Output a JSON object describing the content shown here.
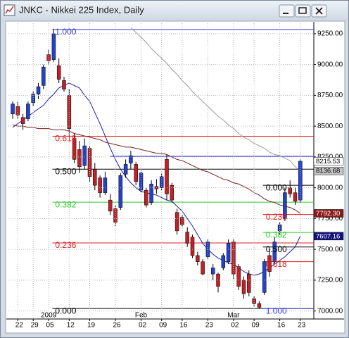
{
  "window": {
    "title": "JNKC - Nikkei 225 Index, Daily"
  },
  "chart_data": {
    "type": "candlestick",
    "categories": [
      null,
      "22",
      null,
      null,
      "29",
      null,
      null,
      "05",
      null,
      null,
      null,
      "12",
      null,
      null,
      null,
      "19",
      null,
      null,
      null,
      null,
      "26",
      null,
      null,
      null,
      null,
      "02",
      null,
      null,
      null,
      "09",
      null,
      null,
      null,
      "16",
      null,
      null,
      null,
      null,
      "23",
      null,
      null,
      null,
      null,
      "02",
      null,
      null,
      null,
      "09",
      null,
      null,
      null,
      null,
      "16",
      null,
      null,
      null,
      "23"
    ],
    "category_groups": [
      null,
      null,
      null,
      null,
      null,
      null,
      null,
      "2009",
      null,
      null,
      null,
      null,
      null,
      null,
      null,
      null,
      null,
      null,
      null,
      null,
      null,
      null,
      null,
      null,
      null,
      "Feb",
      null,
      null,
      null,
      null,
      null,
      null,
      null,
      null,
      null,
      null,
      null,
      null,
      null,
      null,
      null,
      null,
      null,
      "Mar",
      null,
      null,
      null,
      null,
      null,
      null,
      null,
      null,
      null,
      null,
      null,
      null,
      null
    ],
    "open": [
      8600,
      8660,
      8570,
      8560,
      8690,
      8760,
      8830,
      9080,
      9040,
      8990,
      8870,
      8750,
      8400,
      8310,
      8180,
      8320,
      8150,
      8080,
      7960,
      7900,
      7830,
      7840,
      8110,
      8200,
      8190,
      7980,
      7980,
      7880,
      8010,
      8000,
      8230,
      8020,
      7800,
      7760,
      7640,
      7600,
      7450,
      7400,
      7440,
      7300,
      7300,
      7350,
      7400,
      7560,
      7360,
      7250,
      7300,
      7100,
      7060,
      7150,
      7450,
      7400,
      7650,
      7750,
      8000,
      7960,
      7900
    ],
    "high": [
      8700,
      8700,
      8600,
      8700,
      8780,
      8850,
      9000,
      9120,
      9290,
      9050,
      8900,
      8800,
      8440,
      8380,
      8400,
      8340,
      8200,
      8100,
      8130,
      7950,
      7860,
      8120,
      8230,
      8300,
      8210,
      8140,
      8000,
      8060,
      8070,
      8120,
      8270,
      8040,
      7830,
      7780,
      7680,
      7620,
      7480,
      7420,
      7580,
      7380,
      7310,
      7470,
      7580,
      7580,
      7380,
      7280,
      7330,
      7120,
      7080,
      7420,
      7500,
      7600,
      7720,
      8000,
      8060,
      8000,
      8230
    ],
    "low": [
      8560,
      8560,
      8470,
      8540,
      8660,
      8720,
      8800,
      9000,
      9020,
      8850,
      8780,
      8430,
      8200,
      8120,
      8150,
      8050,
      7980,
      7920,
      7940,
      7780,
      7690,
      7820,
      8080,
      8150,
      8020,
      7960,
      7840,
      7860,
      7950,
      7980,
      7900,
      7880,
      7620,
      7680,
      7520,
      7430,
      7370,
      7290,
      7420,
      7250,
      7150,
      7330,
      7380,
      7260,
      7170,
      7100,
      7120,
      7040,
      7020,
      7130,
      7280,
      7380,
      7620,
      7730,
      7920,
      7860,
      7880
    ],
    "close": [
      8680,
      8590,
      8520,
      8680,
      8760,
      8820,
      8980,
      9030,
      9250,
      8880,
      8800,
      8480,
      8230,
      8170,
      8340,
      8090,
      8020,
      7960,
      8080,
      7810,
      7720,
      8100,
      8190,
      8260,
      8050,
      8120,
      7860,
      8030,
      7990,
      8090,
      7950,
      7900,
      7650,
      7700,
      7550,
      7450,
      7400,
      7300,
      7560,
      7350,
      7200,
      7450,
      7550,
      7300,
      7200,
      7140,
      7150,
      7060,
      7030,
      7400,
      7320,
      7560,
      7700,
      7960,
      7950,
      7890,
      8215.53
    ],
    "up_color": "#2342c8",
    "down_color": "#c02026",
    "overlays": [
      {
        "color": "#1c1caa",
        "values": [
          8490,
          8520,
          8550,
          8580,
          8610,
          8640,
          8670,
          8720,
          8760,
          8810,
          8830,
          8850,
          8830,
          8810,
          8750,
          8700,
          8610,
          8520,
          8420,
          8320,
          8230,
          8150,
          8090,
          8040,
          8000,
          7970,
          7960,
          7950,
          7940,
          7920,
          7900,
          7890,
          7850,
          7810,
          7750,
          7690,
          7620,
          7550,
          7500,
          7460,
          7430,
          7410,
          7390,
          7380,
          7350,
          7320,
          7300,
          7290,
          7300,
          7320,
          7350,
          7380,
          7410,
          7440,
          7480,
          7520,
          7607.16
        ]
      },
      {
        "color": "#7b2020",
        "values": [
          8510,
          8500,
          8500,
          8490,
          8490,
          8480,
          8480,
          8480,
          8470,
          8470,
          8470,
          8460,
          8440,
          8430,
          8420,
          8410,
          8400,
          8390,
          8370,
          8360,
          8350,
          8340,
          8330,
          8330,
          8320,
          8310,
          8300,
          8290,
          8280,
          8280,
          8270,
          8250,
          8230,
          8220,
          8200,
          8180,
          8160,
          8140,
          8130,
          8110,
          8090,
          8070,
          8060,
          8040,
          8030,
          8010,
          7990,
          7960,
          7940,
          7910,
          7890,
          7880,
          7860,
          7850,
          7840,
          7820,
          7792.3
        ]
      },
      {
        "color": "#9a9a9a",
        "values": [
          null,
          null,
          null,
          null,
          null,
          null,
          null,
          null,
          null,
          null,
          null,
          null,
          null,
          null,
          null,
          null,
          null,
          null,
          null,
          null,
          null,
          null,
          null,
          9300,
          9260,
          9220,
          9180,
          9130,
          9090,
          9050,
          9010,
          8960,
          8920,
          8870,
          8830,
          8780,
          8740,
          8700,
          8660,
          8620,
          8580,
          8550,
          8510,
          8480,
          8440,
          8410,
          8390,
          8360,
          8340,
          8320,
          8290,
          8270,
          8260,
          8240,
          8220,
          8170,
          8136.68
        ]
      }
    ],
    "ylim": [
      6935,
      9335
    ],
    "yticks": [
      {
        "value": 7000,
        "label": "7000.00"
      },
      {
        "value": 7250,
        "label": "7250.00"
      },
      {
        "value": 7500,
        "label": "7500.00"
      },
      {
        "value": 7750,
        "label": "7750.00"
      },
      {
        "value": 8000,
        "label": "8000.00"
      },
      {
        "value": 8250,
        "label": "8250.00"
      },
      {
        "value": 8500,
        "label": "8500.00"
      },
      {
        "value": 8750,
        "label": "8750.00"
      },
      {
        "value": 9000,
        "label": "9000.00"
      },
      {
        "value": 9250,
        "label": "9250.00"
      }
    ],
    "grid": true,
    "fib_sets": [
      {
        "levels": [
          {
            "value": 7020,
            "label": "0.000",
            "color": "#000000"
          },
          {
            "value": 7552,
            "label": "0.236",
            "color": "#e02020"
          },
          {
            "value": 7883,
            "label": "0.382",
            "color": "#2ecc2e"
          },
          {
            "value": 8151,
            "label": "0.500",
            "color": "#000000"
          },
          {
            "value": 8418,
            "label": "0.618",
            "color": "#e02020"
          },
          {
            "value": 9284,
            "label": "1.000",
            "color": "#3a3ad8"
          }
        ]
      },
      {
        "levels": [
          {
            "value": 8020,
            "label": "0.000",
            "color": "#000000"
          },
          {
            "value": 7783,
            "label": "0.236",
            "color": "#e02020"
          },
          {
            "value": 7637,
            "label": "0.382",
            "color": "#2ecc2e"
          },
          {
            "value": 7519,
            "label": "0.500",
            "color": "#000000"
          },
          {
            "value": 7400,
            "label": "0.618",
            "color": "#e02020"
          },
          {
            "value": 7020,
            "label": "1.000",
            "color": "#3a3ad8"
          }
        ]
      }
    ],
    "hlines": [
      {
        "value": 8255,
        "color": "#1c1cc8"
      }
    ],
    "price_markers": [
      {
        "value": 8215.53,
        "label": "8215.53",
        "color": "#ffffff",
        "text_color": "#000000"
      },
      {
        "value": 8136.68,
        "label": "8136.68",
        "color": "#c4c4c4",
        "text_color": "#000000"
      },
      {
        "value": 7792.3,
        "label": "7792.30",
        "color": "#8b1a1a",
        "text_color": "#ffffff"
      },
      {
        "value": 7607.16,
        "label": "7607.16",
        "color": "#12127a",
        "text_color": "#ffffff"
      }
    ]
  }
}
